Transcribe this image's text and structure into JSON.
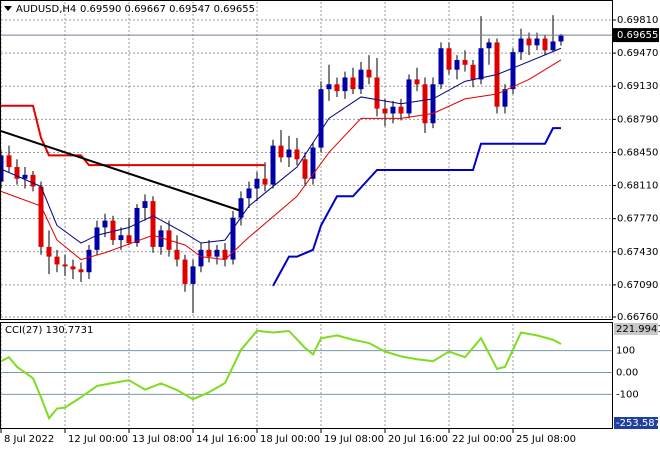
{
  "chart_data": [
    {
      "type": "candlestick",
      "title": "AUDUSD,H4",
      "quote": "0.69590 0.69667 0.69547 0.69655",
      "categories": [
        "8 Jul 2022",
        null,
        null,
        null,
        null,
        null,
        null,
        null,
        "12 Jul 00:00",
        null,
        null,
        null,
        null,
        null,
        null,
        null,
        "13 Jul 08:00",
        null,
        null,
        null,
        null,
        null,
        null,
        null,
        "14 Jul 16:00",
        null,
        null,
        null,
        null,
        null,
        null,
        null,
        "18 Jul 00:00",
        null,
        null,
        null,
        null,
        null,
        null,
        null,
        "19 Jul 08:00",
        null,
        null,
        null,
        null,
        null,
        null,
        null,
        "20 Jul 16:00",
        null,
        null,
        null,
        null,
        null,
        null,
        null,
        "22 Jul 00:00",
        null,
        null,
        null,
        null,
        null,
        null,
        null,
        "25 Jul 08:00",
        null,
        null,
        null,
        null,
        null,
        null
      ],
      "ohlc": [
        [
          0.6815,
          0.6848,
          0.6808,
          0.6842
        ],
        [
          0.6842,
          0.6852,
          0.6825,
          0.683
        ],
        [
          0.683,
          0.6838,
          0.6812,
          0.6818
        ],
        [
          0.6818,
          0.683,
          0.6808,
          0.6822
        ],
        [
          0.6822,
          0.6826,
          0.6805,
          0.681
        ],
        [
          0.681,
          0.6815,
          0.674,
          0.6748
        ],
        [
          0.6748,
          0.6765,
          0.672,
          0.6738
        ],
        [
          0.6738,
          0.6745,
          0.6722,
          0.673
        ],
        [
          0.673,
          0.674,
          0.6718,
          0.6728
        ],
        [
          0.6728,
          0.6735,
          0.6715,
          0.6725
        ],
        [
          0.6725,
          0.6732,
          0.6712,
          0.6722
        ],
        [
          0.6722,
          0.675,
          0.6715,
          0.6745
        ],
        [
          0.6745,
          0.6775,
          0.674,
          0.6768
        ],
        [
          0.6768,
          0.6782,
          0.6758,
          0.6775
        ],
        [
          0.6775,
          0.678,
          0.675,
          0.6755
        ],
        [
          0.6755,
          0.6768,
          0.6745,
          0.676
        ],
        [
          0.676,
          0.6778,
          0.675,
          0.6752
        ],
        [
          0.6752,
          0.6792,
          0.6748,
          0.6788
        ],
        [
          0.6788,
          0.6802,
          0.6775,
          0.6795
        ],
        [
          0.6795,
          0.68,
          0.6742,
          0.6748
        ],
        [
          0.6748,
          0.677,
          0.674,
          0.6765
        ],
        [
          0.6765,
          0.6775,
          0.6738,
          0.6745
        ],
        [
          0.6745,
          0.676,
          0.6728,
          0.6735
        ],
        [
          0.6735,
          0.674,
          0.6702,
          0.671
        ],
        [
          0.671,
          0.6735,
          0.668,
          0.6728
        ],
        [
          0.6728,
          0.6752,
          0.6722,
          0.6745
        ],
        [
          0.6745,
          0.6755,
          0.6732,
          0.6738
        ],
        [
          0.6738,
          0.675,
          0.673,
          0.6745
        ],
        [
          0.6745,
          0.6752,
          0.6728,
          0.6735
        ],
        [
          0.6735,
          0.6785,
          0.673,
          0.6778
        ],
        [
          0.6778,
          0.6805,
          0.677,
          0.6798
        ],
        [
          0.6798,
          0.6815,
          0.6788,
          0.6808
        ],
        [
          0.6808,
          0.6825,
          0.6795,
          0.6818
        ],
        [
          0.6818,
          0.6835,
          0.6805,
          0.6812
        ],
        [
          0.6812,
          0.6858,
          0.6808,
          0.6852
        ],
        [
          0.6852,
          0.6868,
          0.6835,
          0.684
        ],
        [
          0.684,
          0.6862,
          0.683,
          0.6848
        ],
        [
          0.6848,
          0.686,
          0.6832,
          0.6838
        ],
        [
          0.6838,
          0.6845,
          0.6812,
          0.6818
        ],
        [
          0.6818,
          0.6855,
          0.6812,
          0.685
        ],
        [
          0.685,
          0.6918,
          0.6845,
          0.691
        ],
        [
          0.691,
          0.6935,
          0.6898,
          0.6915
        ],
        [
          0.6915,
          0.6922,
          0.6902,
          0.6908
        ],
        [
          0.6908,
          0.6928,
          0.69,
          0.6922
        ],
        [
          0.6922,
          0.6932,
          0.6905,
          0.691
        ],
        [
          0.691,
          0.6938,
          0.6905,
          0.693
        ],
        [
          0.693,
          0.6945,
          0.6915,
          0.6922
        ],
        [
          0.6922,
          0.6942,
          0.6882,
          0.689
        ],
        [
          0.689,
          0.69,
          0.6872,
          0.6885
        ],
        [
          0.6885,
          0.6898,
          0.6875,
          0.6892
        ],
        [
          0.6892,
          0.69,
          0.6878,
          0.6885
        ],
        [
          0.6885,
          0.6925,
          0.688,
          0.692
        ],
        [
          0.692,
          0.6932,
          0.6908,
          0.6915
        ],
        [
          0.6915,
          0.6922,
          0.6865,
          0.6875
        ],
        [
          0.6875,
          0.6922,
          0.687,
          0.6915
        ],
        [
          0.6915,
          0.6958,
          0.691,
          0.6952
        ],
        [
          0.6952,
          0.6958,
          0.6925,
          0.693
        ],
        [
          0.693,
          0.6945,
          0.692,
          0.694
        ],
        [
          0.694,
          0.695,
          0.6928,
          0.6935
        ],
        [
          0.6935,
          0.694,
          0.6912,
          0.692
        ],
        [
          0.692,
          0.6985,
          0.6915,
          0.6952
        ],
        [
          0.6952,
          0.6962,
          0.6935,
          0.6958
        ],
        [
          0.6958,
          0.6962,
          0.6885,
          0.6892
        ],
        [
          0.6892,
          0.6915,
          0.6885,
          0.691
        ],
        [
          0.691,
          0.6952,
          0.6905,
          0.6948
        ],
        [
          0.6948,
          0.6972,
          0.694,
          0.6962
        ],
        [
          0.6962,
          0.6968,
          0.6945,
          0.6955
        ],
        [
          0.6955,
          0.6968,
          0.695,
          0.6962
        ],
        [
          0.6962,
          0.6966,
          0.6945,
          0.695
        ],
        [
          0.695,
          0.6986,
          0.6948,
          0.6959
        ],
        [
          0.6959,
          0.69667,
          0.69547,
          0.69655
        ]
      ],
      "up_color": "#0000a8",
      "down_color": "#e00000",
      "wick_color": "#000000",
      "current_price": 0.69655,
      "overlays": [
        {
          "color": "#000080",
          "x": [
            0,
            5,
            7,
            10,
            12,
            16,
            19,
            23,
            25,
            28,
            31,
            37,
            41,
            45,
            50,
            54,
            58,
            62,
            65,
            70
          ],
          "values": [
            0.6828,
            0.681,
            0.677,
            0.6752,
            0.676,
            0.6768,
            0.678,
            0.6762,
            0.6752,
            0.6755,
            0.679,
            0.683,
            0.688,
            0.6902,
            0.6895,
            0.69,
            0.6918,
            0.6925,
            0.6935,
            0.6952
          ]
        },
        {
          "color": "#e00000",
          "x": [
            0,
            5,
            7,
            10,
            13,
            19,
            23,
            25,
            28,
            31,
            37,
            41,
            45,
            50,
            54,
            58,
            62,
            66,
            70
          ],
          "values": [
            0.6805,
            0.679,
            0.6755,
            0.6735,
            0.6742,
            0.676,
            0.675,
            0.6738,
            0.6735,
            0.6758,
            0.68,
            0.6845,
            0.688,
            0.688,
            0.6885,
            0.69,
            0.6905,
            0.692,
            0.694
          ]
        },
        {
          "color": "#e00000",
          "thick": true,
          "x": [
            0,
            4,
            5,
            6,
            10,
            11,
            33
          ],
          "values": [
            0.6893,
            0.6893,
            0.686,
            0.6842,
            0.6842,
            0.6832,
            0.6832
          ]
        },
        {
          "color": "#0000c8",
          "thick": true,
          "x": [
            34,
            36,
            37,
            39,
            40,
            42,
            44,
            46,
            47,
            59,
            60,
            68,
            69,
            70
          ],
          "values": [
            0.6708,
            0.6738,
            0.6738,
            0.6745,
            0.677,
            0.68,
            0.68,
            0.6818,
            0.6827,
            0.6827,
            0.6854,
            0.6854,
            0.687,
            0.687
          ]
        },
        {
          "color": "#000000",
          "thick": true,
          "x": [
            0,
            30
          ],
          "values": [
            0.6867,
            0.6785
          ]
        }
      ],
      "ylim": [
        0.6675,
        0.69995
      ],
      "yticks": [
        {
          "value": 0.6981,
          "label": "0.69810"
        },
        {
          "value": 0.6947,
          "label": "0.69470"
        },
        {
          "value": 0.6913,
          "label": "0.69130"
        },
        {
          "value": 0.6879,
          "label": "0.68790"
        },
        {
          "value": 0.6845,
          "label": "0.68450"
        },
        {
          "value": 0.6811,
          "label": "0.68110"
        },
        {
          "value": 0.6777,
          "label": "0.67770"
        },
        {
          "value": 0.6743,
          "label": "0.67430"
        },
        {
          "value": 0.6709,
          "label": "0.67090"
        },
        {
          "value": 0.6676,
          "label": "0.66760"
        }
      ],
      "grid": true
    },
    {
      "type": "line",
      "title": "CCI(27) 130.7731",
      "color": "#7fdc1e",
      "x": [
        0,
        1,
        2,
        4,
        5,
        6,
        7,
        8,
        10,
        12,
        14,
        16,
        18,
        20,
        22,
        24,
        26,
        28,
        30,
        32,
        34,
        36,
        38,
        39,
        40,
        42,
        44,
        46,
        48,
        50,
        52,
        54,
        56,
        58,
        60,
        62,
        63,
        65,
        67,
        69,
        70
      ],
      "values": [
        52,
        70,
        26,
        -26,
        -113,
        -209,
        -165,
        -160,
        -113,
        -61,
        -48,
        -35,
        -78,
        -50,
        -80,
        -122,
        -90,
        -48,
        104,
        191,
        183,
        190,
        113,
        83,
        157,
        170,
        150,
        135,
        96,
        74,
        61,
        52,
        96,
        70,
        157,
        17,
        26,
        183,
        170,
        150,
        130.7731
      ],
      "ylim": [
        -253.5874,
        221.9941
      ],
      "yticks": [
        221.9941,
        100,
        {
          "value": 0,
          "label": "0.00"
        },
        -100,
        -253.5874
      ]
    }
  ]
}
